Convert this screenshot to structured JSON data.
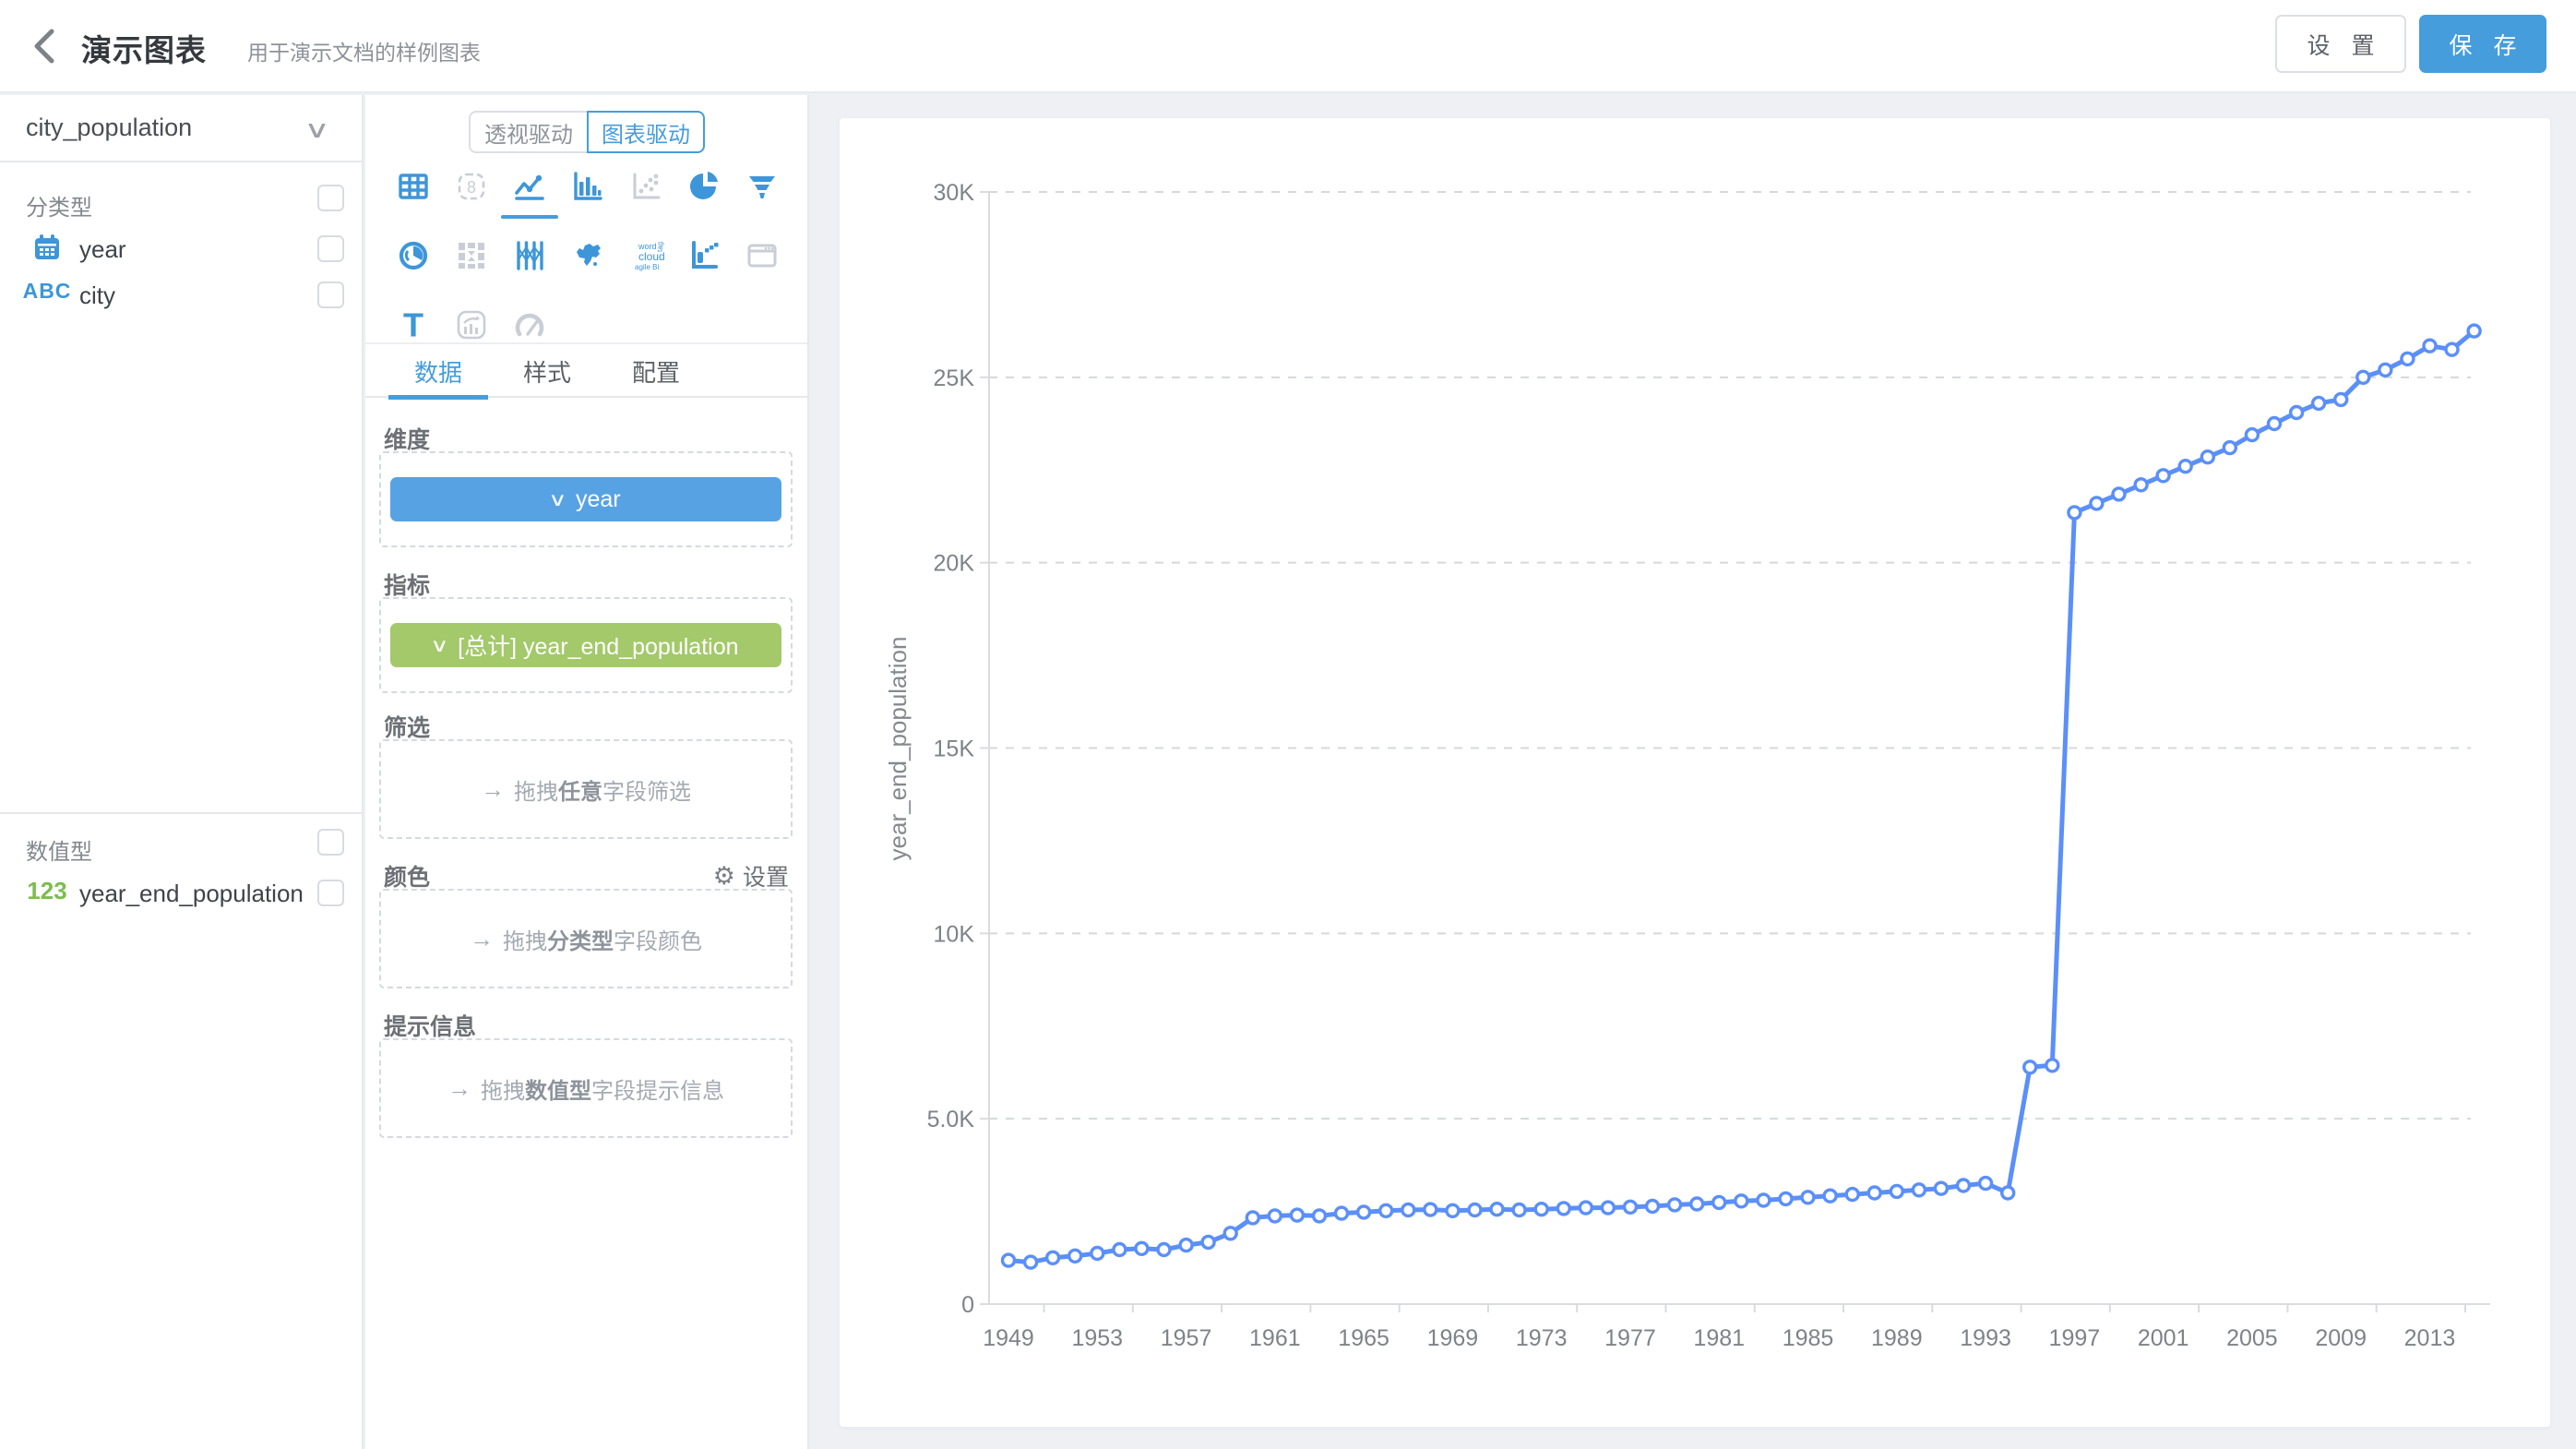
{
  "header": {
    "title": "演示图表",
    "subtitle": "用于演示文档的样例图表",
    "settings_label": "设 置",
    "save_label": "保 存"
  },
  "icons": {
    "chevron_down": "∨",
    "gear": "⚙",
    "arrow_right": "→"
  },
  "dataset_panel": {
    "dataset_name": "city_population",
    "dimension_group_label": "分类型",
    "measure_group_label": "数值型",
    "dimension_fields": [
      {
        "icon": "calendar",
        "name": "year"
      },
      {
        "icon": "abc",
        "glyph": "ABC",
        "name": "city"
      }
    ],
    "measure_fields": [
      {
        "icon": "num",
        "glyph": "123",
        "name": "year_end_population"
      }
    ]
  },
  "config_panel": {
    "mode_pivot_label": "透视驱动",
    "mode_chart_label": "图表驱动",
    "active_mode": "图表驱动",
    "tabs": [
      "数据",
      "样式",
      "配置"
    ],
    "active_tab": "数据",
    "chart_types": [
      {
        "name": "table-chart",
        "state": "enabled"
      },
      {
        "name": "kpi-card",
        "state": "disabled",
        "glyph": "8"
      },
      {
        "name": "line-chart",
        "state": "selected"
      },
      {
        "name": "bar-chart",
        "state": "enabled"
      },
      {
        "name": "scatter-chart",
        "state": "disabled"
      },
      {
        "name": "pie-chart",
        "state": "enabled"
      },
      {
        "name": "funnel-chart",
        "state": "enabled"
      },
      {
        "name": "radar-chart",
        "state": "enabled"
      },
      {
        "name": "crosstab",
        "state": "disabled"
      },
      {
        "name": "parallel-chart",
        "state": "enabled"
      },
      {
        "name": "map-chart",
        "state": "enabled"
      },
      {
        "name": "wordcloud-chart",
        "state": "enabled",
        "lines": [
          "word",
          "cloud",
          "agile Bi"
        ],
        "side_word": "tag"
      },
      {
        "name": "waterfall-chart",
        "state": "enabled"
      },
      {
        "name": "iframe-widget",
        "state": "disabled"
      },
      {
        "name": "text-widget",
        "state": "enabled",
        "glyph": "T"
      },
      {
        "name": "trend-card",
        "state": "disabled"
      },
      {
        "name": "gauge-chart",
        "state": "disabled"
      }
    ],
    "sections": {
      "dimension": {
        "label": "维度",
        "pill": "year"
      },
      "measure": {
        "label": "指标",
        "pill": "[总计] year_end_population"
      },
      "filter": {
        "label": "筛选",
        "ph_prefix": "拖拽",
        "ph_bold": "任意",
        "ph_suffix": "字段筛选"
      },
      "color": {
        "label": "颜色",
        "action": "设置",
        "ph_prefix": "拖拽",
        "ph_bold": "分类型",
        "ph_suffix": "字段颜色"
      },
      "tooltip": {
        "label": "提示信息",
        "ph_prefix": "拖拽",
        "ph_bold": "数值型",
        "ph_suffix": "字段提示信息"
      }
    }
  },
  "chart_data": {
    "type": "line",
    "title": "",
    "xlabel": "",
    "ylabel": "year_end_population",
    "legend": "none",
    "grid": "horizontal-dashed",
    "ylim": [
      0,
      30000
    ],
    "yticks": [
      {
        "value": 0,
        "label": "0"
      },
      {
        "value": 5000,
        "label": "5.0K"
      },
      {
        "value": 10000,
        "label": "10K"
      },
      {
        "value": 15000,
        "label": "15K"
      },
      {
        "value": 20000,
        "label": "20K"
      },
      {
        "value": 25000,
        "label": "25K"
      },
      {
        "value": 30000,
        "label": "30K"
      }
    ],
    "xtick_label_every": 4,
    "x": [
      1949,
      1950,
      1951,
      1952,
      1953,
      1954,
      1955,
      1956,
      1957,
      1958,
      1959,
      1960,
      1961,
      1962,
      1963,
      1964,
      1965,
      1966,
      1967,
      1968,
      1969,
      1970,
      1971,
      1972,
      1973,
      1974,
      1975,
      1976,
      1977,
      1978,
      1979,
      1980,
      1981,
      1982,
      1983,
      1984,
      1985,
      1986,
      1987,
      1988,
      1989,
      1990,
      1991,
      1992,
      1993,
      1994,
      1995,
      1996,
      1997,
      1998,
      1999,
      2000,
      2001,
      2002,
      2003,
      2004,
      2005,
      2006,
      2007,
      2008,
      2009,
      2010,
      2011,
      2012,
      2013,
      2014,
      2015
    ],
    "series": [
      {
        "name": "year_end_population",
        "values": [
          1180,
          1130,
          1250,
          1300,
          1370,
          1470,
          1500,
          1470,
          1590,
          1670,
          1910,
          2330,
          2380,
          2400,
          2380,
          2450,
          2480,
          2520,
          2540,
          2550,
          2520,
          2540,
          2560,
          2540,
          2560,
          2580,
          2600,
          2600,
          2620,
          2640,
          2680,
          2700,
          2740,
          2780,
          2800,
          2840,
          2880,
          2920,
          2960,
          3000,
          3040,
          3080,
          3120,
          3200,
          3260,
          3000,
          6390,
          6440,
          21350,
          21600,
          21850,
          22100,
          22350,
          22600,
          22850,
          23100,
          23450,
          23750,
          24050,
          24300,
          24400,
          25000,
          25200,
          25500,
          25850,
          25750,
          26250
        ]
      }
    ],
    "colors": {
      "line": "#5b8ff9",
      "point_fill": "#ffffff",
      "grid": "#d6d8db",
      "axis": "#d9dbde"
    }
  },
  "ui_colors": {
    "accent": "#459ddc",
    "pill_blue": "#57a2e3",
    "pill_green": "#a3c96a",
    "icon_blue": "#3d96d9",
    "icon_gray": "#c9ced6",
    "field_green": "#7cbd4f"
  }
}
